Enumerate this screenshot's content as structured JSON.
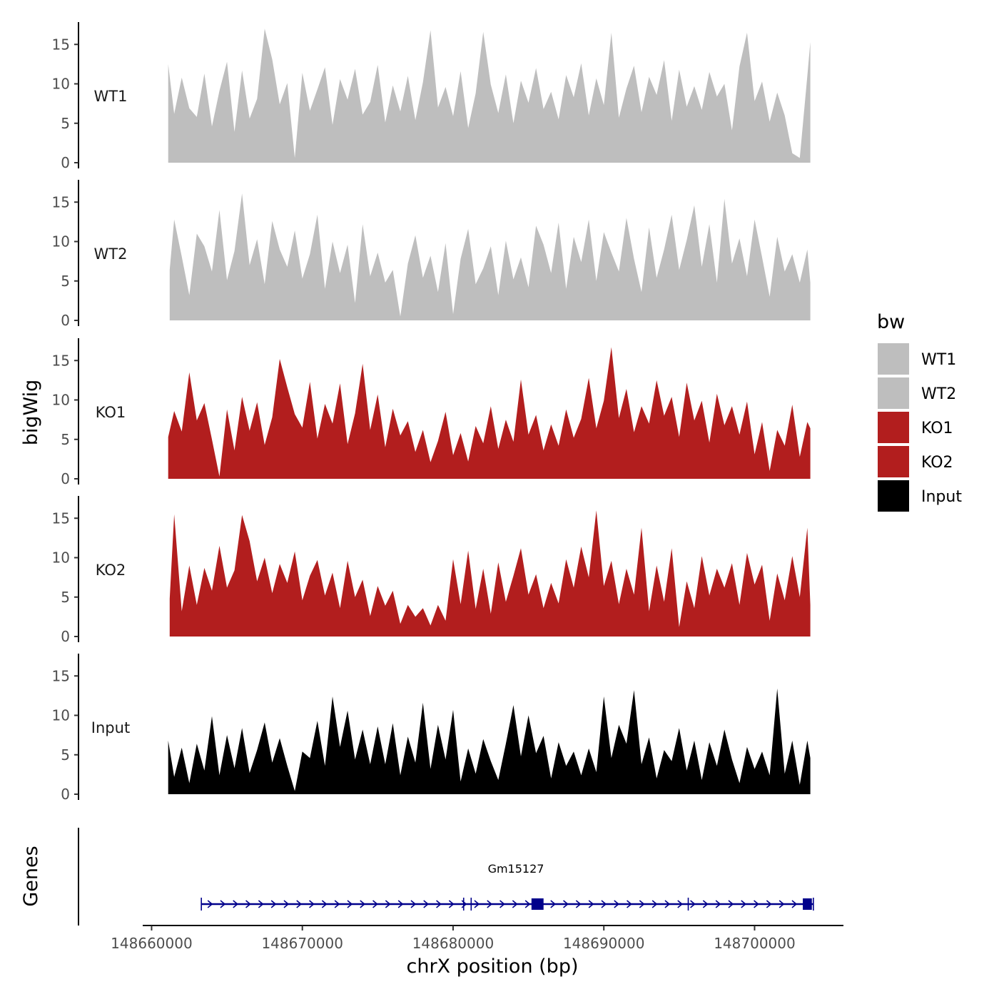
{
  "chart_data": {
    "type": "area",
    "chromosome": "chrX",
    "xlabel": "chrX position (bp)",
    "ylabel": "bigWig",
    "genes_axis_label": "Genes",
    "xlim": [
      148659600,
      148705800
    ],
    "x_ticks": [
      148660000,
      148670000,
      148680000,
      148690000,
      148700000
    ],
    "x_tick_labels": [
      "148660000",
      "148670000",
      "148680000",
      "148690000",
      "148700000"
    ],
    "ylim": [
      0,
      18
    ],
    "y_ticks": [
      0,
      5,
      10,
      15
    ],
    "y_tick_labels": [
      "0",
      "5",
      "10",
      "15"
    ],
    "legend": {
      "title": "bw",
      "entries": [
        {
          "label": "WT1",
          "color": "#bebebe"
        },
        {
          "label": "WT2",
          "color": "#bebebe"
        },
        {
          "label": "KO1",
          "color": "#b21e1e"
        },
        {
          "label": "KO2",
          "color": "#b21e1e"
        },
        {
          "label": "Input",
          "color": "#000000"
        }
      ]
    },
    "series": [
      {
        "name": "WT1",
        "color": "#bebebe",
        "x": [
          148661100,
          148661500,
          148662000,
          148662500,
          148663000,
          148663500,
          148664000,
          148664500,
          148665000,
          148665500,
          148666000,
          148666500,
          148667000,
          148667500,
          148668000,
          148668500,
          148669000,
          148669500,
          148670000,
          148670500,
          148671000,
          148671500,
          148672000,
          148672500,
          148673000,
          148673500,
          148674000,
          148674500,
          148675000,
          148675500,
          148676000,
          148676500,
          148677000,
          148677500,
          148678000,
          148678500,
          148679000,
          148679500,
          148680000,
          148680500,
          148681000,
          148681500,
          148682000,
          148682500,
          148683000,
          148683500,
          148684000,
          148684500,
          148685000,
          148685500,
          148686000,
          148686500,
          148687000,
          148687500,
          148688000,
          148688500,
          148689000,
          148689500,
          148690000,
          148690500,
          148691000,
          148691500,
          148692000,
          148692500,
          148693000,
          148693500,
          148694000,
          148694500,
          148695000,
          148695500,
          148696000,
          148696500,
          148697000,
          148697500,
          148698000,
          148698500,
          148699000,
          148699500,
          148700000,
          148700500,
          148701000,
          148701500,
          148702000,
          148702500,
          148703000,
          148703500,
          148703700
        ],
        "values": [
          12.5,
          6.2,
          10.8,
          6.9,
          5.8,
          11.3,
          4.6,
          9.1,
          12.8,
          3.9,
          11.7,
          5.6,
          8.1,
          17.0,
          13.1,
          7.4,
          10.1,
          0.6,
          11.4,
          6.6,
          9.3,
          12.1,
          4.8,
          10.6,
          8.0,
          11.9,
          6.1,
          7.7,
          12.4,
          5.1,
          9.8,
          6.5,
          11.0,
          5.4,
          10.2,
          16.8,
          7.0,
          9.6,
          5.9,
          11.6,
          4.4,
          8.8,
          16.6,
          9.9,
          6.3,
          11.2,
          5.0,
          10.4,
          7.6,
          12.0,
          6.8,
          9.0,
          5.5,
          11.1,
          8.3,
          12.6,
          6.0,
          10.7,
          7.3,
          16.5,
          5.7,
          9.4,
          12.3,
          6.4,
          10.9,
          8.6,
          13.0,
          5.3,
          11.8,
          7.1,
          9.7,
          6.7,
          11.5,
          8.4,
          10.0,
          4.1,
          12.2,
          16.5,
          7.8,
          10.3,
          5.2,
          8.9,
          6.0,
          1.2,
          0.6,
          11.0,
          15.3
        ]
      },
      {
        "name": "WT2",
        "color": "#bebebe",
        "x": [
          148661200,
          148661500,
          148662000,
          148662500,
          148663000,
          148663500,
          148664000,
          148664500,
          148665000,
          148665500,
          148666000,
          148666500,
          148667000,
          148667500,
          148668000,
          148668500,
          148669000,
          148669500,
          148670000,
          148670500,
          148671000,
          148671500,
          148672000,
          148672500,
          148673000,
          148673500,
          148674000,
          148674500,
          148675000,
          148675500,
          148676000,
          148676500,
          148677000,
          148677500,
          148678000,
          148678500,
          148679000,
          148679500,
          148680000,
          148680500,
          148681000,
          148681500,
          148682000,
          148682500,
          148683000,
          148683500,
          148684000,
          148684500,
          148685000,
          148685500,
          148686000,
          148686500,
          148687000,
          148687500,
          148688000,
          148688500,
          148689000,
          148689500,
          148690000,
          148690500,
          148691000,
          148691500,
          148692000,
          148692500,
          148693000,
          148693500,
          148694000,
          148694500,
          148695000,
          148695500,
          148696000,
          148696500,
          148697000,
          148697500,
          148698000,
          148698500,
          148699000,
          148699500,
          148700000,
          148700500,
          148701000,
          148701500,
          148702000,
          148702500,
          148703000,
          148703500,
          148703700
        ],
        "values": [
          6.4,
          12.8,
          8.1,
          3.2,
          11.0,
          9.4,
          6.2,
          14.0,
          5.1,
          8.8,
          16.1,
          7.0,
          10.3,
          4.6,
          12.6,
          9.0,
          6.8,
          11.4,
          5.3,
          8.4,
          13.4,
          4.0,
          10.0,
          6.0,
          9.6,
          2.2,
          12.2,
          5.6,
          8.6,
          4.8,
          6.4,
          0.5,
          7.2,
          10.8,
          5.4,
          8.2,
          3.6,
          9.8,
          0.8,
          7.8,
          11.6,
          4.6,
          6.6,
          9.4,
          3.2,
          10.1,
          5.2,
          8.0,
          4.2,
          12.0,
          9.6,
          6.0,
          12.4,
          4.0,
          10.6,
          7.4,
          12.8,
          5.0,
          11.2,
          8.6,
          6.2,
          13.0,
          7.8,
          3.6,
          11.8,
          5.4,
          9.0,
          13.4,
          6.4,
          10.2,
          14.6,
          6.8,
          12.2,
          4.8,
          15.4,
          7.2,
          10.4,
          5.6,
          12.8,
          8.0,
          3.0,
          10.6,
          6.2,
          8.4,
          4.8,
          9.0,
          4.8
        ]
      },
      {
        "name": "KO1",
        "color": "#b21e1e",
        "x": [
          148661100,
          148661500,
          148662000,
          148662500,
          148663000,
          148663500,
          148664000,
          148664500,
          148665000,
          148665500,
          148666000,
          148666500,
          148667000,
          148667500,
          148668000,
          148668500,
          148669000,
          148669500,
          148670000,
          148670500,
          148671000,
          148671500,
          148672000,
          148672500,
          148673000,
          148673500,
          148674000,
          148674500,
          148675000,
          148675500,
          148676000,
          148676500,
          148677000,
          148677500,
          148678000,
          148678500,
          148679000,
          148679500,
          148680000,
          148680500,
          148681000,
          148681500,
          148682000,
          148682500,
          148683000,
          148683500,
          148684000,
          148684500,
          148685000,
          148685500,
          148686000,
          148686500,
          148687000,
          148687500,
          148688000,
          148688500,
          148689000,
          148689500,
          148690000,
          148690500,
          148691000,
          148691500,
          148692000,
          148692500,
          148693000,
          148693500,
          148694000,
          148694500,
          148695000,
          148695500,
          148696000,
          148696500,
          148697000,
          148697500,
          148698000,
          148698500,
          148699000,
          148699500,
          148700000,
          148700500,
          148701000,
          148701500,
          148702000,
          148702500,
          148703000,
          148703500,
          148703700
        ],
        "values": [
          5.3,
          8.6,
          6.0,
          13.5,
          7.4,
          9.6,
          5.0,
          0.3,
          8.8,
          3.6,
          10.4,
          6.1,
          9.7,
          4.3,
          7.8,
          15.2,
          11.6,
          8.2,
          6.5,
          12.3,
          5.1,
          9.5,
          7.0,
          12.1,
          4.4,
          8.3,
          14.6,
          6.2,
          10.7,
          4.0,
          8.9,
          5.5,
          7.3,
          3.4,
          6.2,
          2.1,
          4.8,
          8.5,
          3.0,
          5.8,
          2.2,
          6.7,
          4.5,
          9.2,
          3.8,
          7.5,
          4.7,
          12.6,
          5.6,
          8.1,
          3.6,
          6.9,
          4.2,
          8.8,
          5.2,
          7.6,
          12.8,
          6.4,
          9.9,
          16.7,
          7.7,
          11.4,
          5.9,
          9.2,
          7.0,
          12.5,
          8.0,
          10.4,
          5.3,
          12.2,
          7.4,
          9.9,
          4.6,
          10.8,
          6.8,
          9.2,
          5.6,
          9.8,
          3.1,
          7.2,
          1.0,
          6.2,
          4.2,
          9.4,
          2.8,
          7.2,
          6.4
        ]
      },
      {
        "name": "KO2",
        "color": "#b21e1e",
        "x": [
          148661200,
          148661500,
          148662000,
          148662500,
          148663000,
          148663500,
          148664000,
          148664500,
          148665000,
          148665500,
          148666000,
          148666500,
          148667000,
          148667500,
          148668000,
          148668500,
          148669000,
          148669500,
          148670000,
          148670500,
          148671000,
          148671500,
          148672000,
          148672500,
          148673000,
          148673500,
          148674000,
          148674500,
          148675000,
          148675500,
          148676000,
          148676500,
          148677000,
          148677500,
          148678000,
          148678500,
          148679000,
          148679500,
          148680000,
          148680500,
          148681000,
          148681500,
          148682000,
          148682500,
          148683000,
          148683500,
          148684000,
          148684500,
          148685000,
          148685500,
          148686000,
          148686500,
          148687000,
          148687500,
          148688000,
          148688500,
          148689000,
          148689500,
          148690000,
          148690500,
          148691000,
          148691500,
          148692000,
          148692500,
          148693000,
          148693500,
          148694000,
          148694500,
          148695000,
          148695500,
          148696000,
          148696500,
          148697000,
          148697500,
          148698000,
          148698500,
          148699000,
          148699500,
          148700000,
          148700500,
          148701000,
          148701500,
          148702000,
          148702500,
          148703000,
          148703500,
          148703700
        ],
        "values": [
          4.8,
          15.5,
          3.2,
          9.0,
          4.0,
          8.7,
          5.8,
          11.5,
          6.2,
          8.4,
          15.4,
          12.1,
          7.0,
          10.0,
          5.5,
          9.2,
          6.8,
          10.8,
          4.6,
          7.7,
          9.7,
          5.2,
          8.1,
          3.6,
          9.6,
          5.0,
          7.2,
          2.6,
          6.4,
          3.9,
          5.8,
          1.6,
          4.0,
          2.5,
          3.6,
          1.4,
          4.0,
          2.0,
          9.8,
          4.1,
          10.9,
          3.5,
          8.6,
          2.9,
          9.4,
          4.4,
          7.7,
          11.2,
          5.3,
          7.9,
          3.6,
          6.8,
          4.2,
          9.8,
          6.2,
          11.4,
          7.5,
          16.0,
          6.4,
          9.6,
          4.1,
          8.6,
          5.3,
          13.8,
          3.2,
          9.0,
          4.4,
          11.2,
          1.2,
          7.0,
          3.6,
          10.2,
          5.2,
          8.6,
          6.2,
          9.3,
          4.0,
          10.6,
          6.6,
          9.1,
          2.0,
          8.0,
          4.6,
          10.2,
          5.0,
          13.8,
          4.0
        ]
      },
      {
        "name": "Input",
        "color": "#000000",
        "x": [
          148661100,
          148661500,
          148662000,
          148662500,
          148663000,
          148663500,
          148664000,
          148664500,
          148665000,
          148665500,
          148666000,
          148666500,
          148667000,
          148667500,
          148668000,
          148668500,
          148669000,
          148669500,
          148670000,
          148670500,
          148671000,
          148671500,
          148672000,
          148672500,
          148673000,
          148673500,
          148674000,
          148674500,
          148675000,
          148675500,
          148676000,
          148676500,
          148677000,
          148677500,
          148678000,
          148678500,
          148679000,
          148679500,
          148680000,
          148680500,
          148681000,
          148681500,
          148682000,
          148682500,
          148683000,
          148683500,
          148684000,
          148684500,
          148685000,
          148685500,
          148686000,
          148686500,
          148687000,
          148687500,
          148688000,
          148688500,
          148689000,
          148689500,
          148690000,
          148690500,
          148691000,
          148691500,
          148692000,
          148692500,
          148693000,
          148693500,
          148694000,
          148694500,
          148695000,
          148695500,
          148696000,
          148696500,
          148697000,
          148697500,
          148698000,
          148698500,
          148699000,
          148699500,
          148700000,
          148700500,
          148701000,
          148701500,
          148702000,
          148702500,
          148703000,
          148703500,
          148703700
        ],
        "values": [
          6.8,
          2.2,
          5.9,
          1.4,
          6.4,
          3.0,
          9.9,
          2.4,
          7.5,
          3.3,
          8.4,
          2.7,
          5.6,
          9.1,
          4.0,
          7.1,
          3.6,
          0.4,
          5.4,
          4.6,
          9.3,
          3.6,
          12.4,
          6.0,
          10.6,
          4.4,
          8.2,
          3.8,
          8.6,
          3.8,
          9.0,
          2.4,
          7.3,
          4.0,
          11.6,
          3.2,
          8.8,
          4.4,
          10.7,
          1.6,
          5.8,
          2.6,
          7.0,
          4.2,
          1.8,
          6.4,
          11.3,
          4.8,
          10.0,
          5.2,
          7.4,
          2.0,
          6.6,
          3.6,
          5.4,
          2.4,
          5.8,
          2.8,
          12.4,
          4.6,
          8.8,
          6.4,
          13.2,
          3.8,
          7.2,
          2.0,
          5.6,
          4.2,
          8.4,
          3.0,
          6.8,
          1.8,
          6.6,
          3.6,
          8.2,
          4.4,
          1.4,
          6.0,
          3.2,
          5.4,
          2.4,
          13.4,
          2.6,
          6.8,
          1.2,
          6.8,
          4.6
        ]
      }
    ],
    "genes": [
      {
        "name": "Gm15127",
        "strand": "+",
        "start": 148663300,
        "end": 148703900,
        "boundaries": [
          148680700,
          148681200,
          148695600
        ],
        "exons": [
          [
            148685200,
            148686000
          ],
          [
            148703200,
            148703800
          ]
        ]
      }
    ]
  }
}
